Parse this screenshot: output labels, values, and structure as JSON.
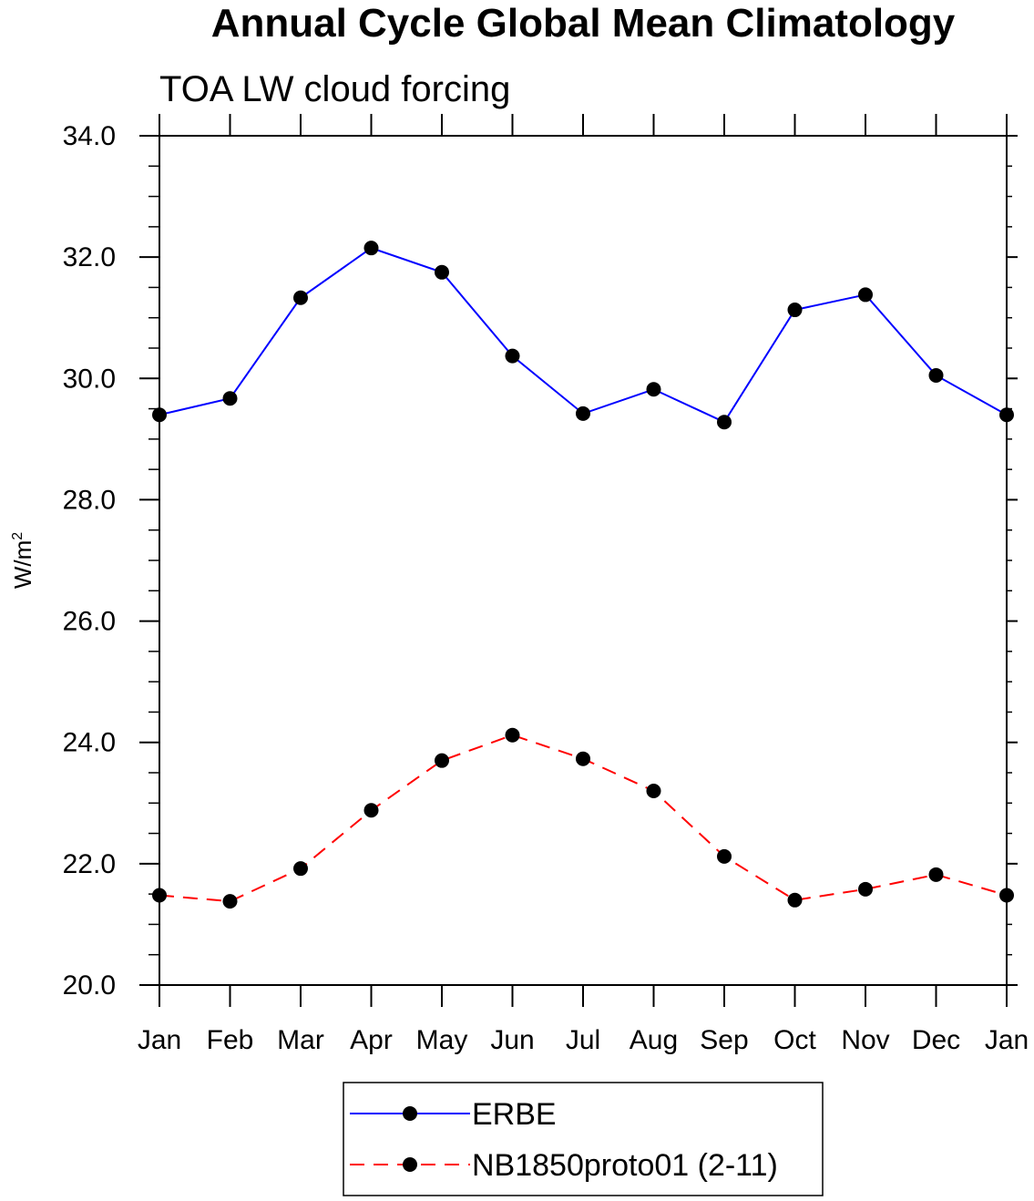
{
  "chart_data": {
    "type": "line",
    "title": "Annual Cycle Global Mean Climatology",
    "subtitle": "TOA LW cloud forcing",
    "ylabel": {
      "base": "W/m",
      "superscript": "2"
    },
    "xlabel": "",
    "ylim": [
      20.0,
      34.0
    ],
    "yticks": [
      "20.0",
      "22.0",
      "24.0",
      "26.0",
      "28.0",
      "30.0",
      "32.0",
      "34.0"
    ],
    "categories": [
      "Jan",
      "Feb",
      "Mar",
      "Apr",
      "May",
      "Jun",
      "Jul",
      "Aug",
      "Sep",
      "Oct",
      "Nov",
      "Dec",
      "Jan"
    ],
    "series": [
      {
        "name": "ERBE",
        "color": "#0000ff",
        "dash": "solid",
        "values": [
          29.4,
          29.67,
          31.33,
          32.15,
          31.75,
          30.37,
          29.42,
          29.82,
          29.28,
          31.13,
          31.38,
          30.05,
          29.4
        ]
      },
      {
        "name": "NB1850proto01 (2-11)",
        "color": "#ff0000",
        "dash": "dashed",
        "values": [
          21.48,
          21.38,
          21.92,
          22.88,
          23.7,
          24.12,
          23.73,
          23.2,
          22.12,
          21.4,
          21.58,
          21.82,
          21.48
        ]
      }
    ],
    "legend_position": "bottom-center",
    "grid": false
  }
}
